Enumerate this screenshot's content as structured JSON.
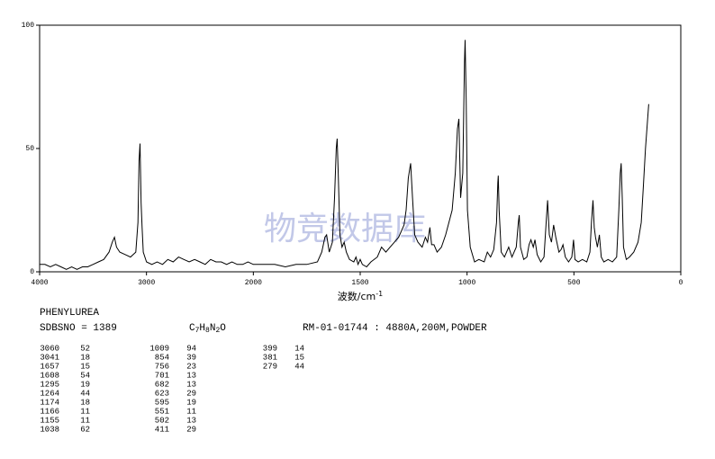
{
  "chart_data": {
    "type": "line",
    "watermark": "物竞数据库",
    "xlabel": {
      "main": "波数/cm",
      "sup": "-1"
    },
    "xlim": [
      4000,
      0
    ],
    "xticks": [
      4000,
      3000,
      2000,
      1500,
      1000,
      500,
      0
    ],
    "ylim": [
      0,
      100
    ],
    "yticks": [
      0,
      50,
      100
    ],
    "color": "#000000",
    "x": [
      4000,
      3950,
      3900,
      3850,
      3800,
      3750,
      3700,
      3650,
      3600,
      3550,
      3500,
      3450,
      3400,
      3350,
      3320,
      3300,
      3280,
      3250,
      3200,
      3150,
      3100,
      3080,
      3070,
      3060,
      3055,
      3050,
      3041,
      3030,
      3000,
      2950,
      2900,
      2850,
      2800,
      2750,
      2700,
      2650,
      2600,
      2550,
      2500,
      2450,
      2400,
      2350,
      2300,
      2250,
      2200,
      2150,
      2100,
      2050,
      2000,
      1950,
      1900,
      1850,
      1800,
      1750,
      1700,
      1680,
      1665,
      1657,
      1645,
      1630,
      1620,
      1612,
      1608,
      1603,
      1595,
      1585,
      1575,
      1565,
      1550,
      1530,
      1520,
      1510,
      1500,
      1490,
      1470,
      1450,
      1420,
      1400,
      1380,
      1360,
      1340,
      1320,
      1300,
      1295,
      1285,
      1275,
      1264,
      1255,
      1245,
      1230,
      1210,
      1195,
      1185,
      1174,
      1166,
      1155,
      1140,
      1120,
      1100,
      1085,
      1070,
      1055,
      1045,
      1038,
      1030,
      1020,
      1012,
      1009,
      1004,
      998,
      985,
      965,
      945,
      920,
      905,
      890,
      875,
      862,
      856,
      854,
      850,
      840,
      825,
      805,
      790,
      770,
      760,
      756,
      750,
      735,
      720,
      710,
      701,
      690,
      682,
      672,
      655,
      640,
      630,
      623,
      615,
      605,
      595,
      585,
      570,
      560,
      551,
      540,
      525,
      510,
      502,
      495,
      480,
      460,
      440,
      425,
      418,
      411,
      405,
      399,
      390,
      381,
      372,
      360,
      340,
      320,
      300,
      290,
      283,
      279,
      274,
      268,
      255,
      240,
      220,
      200,
      185,
      175,
      165,
      155,
      150
    ],
    "values": [
      3,
      3,
      2,
      3,
      2,
      1,
      2,
      1,
      2,
      2,
      3,
      4,
      5,
      8,
      12,
      14,
      10,
      8,
      7,
      6,
      8,
      20,
      45,
      52,
      40,
      28,
      18,
      8,
      4,
      3,
      4,
      3,
      5,
      4,
      6,
      5,
      4,
      5,
      4,
      3,
      5,
      4,
      4,
      3,
      4,
      3,
      3,
      4,
      3,
      3,
      3,
      2,
      3,
      3,
      4,
      8,
      14,
      15,
      8,
      12,
      30,
      50,
      54,
      40,
      15,
      10,
      12,
      8,
      5,
      4,
      6,
      3,
      5,
      3,
      2,
      4,
      6,
      10,
      8,
      10,
      12,
      14,
      18,
      19,
      25,
      38,
      44,
      30,
      15,
      12,
      10,
      14,
      12,
      18,
      11,
      11,
      8,
      10,
      15,
      20,
      25,
      40,
      58,
      62,
      30,
      40,
      85,
      94,
      70,
      25,
      10,
      4,
      5,
      4,
      8,
      6,
      9,
      20,
      36,
      39,
      25,
      8,
      6,
      10,
      6,
      10,
      20,
      23,
      10,
      5,
      6,
      11,
      13,
      10,
      13,
      7,
      4,
      6,
      20,
      29,
      15,
      12,
      19,
      14,
      8,
      9,
      11,
      6,
      4,
      6,
      13,
      5,
      4,
      5,
      4,
      8,
      20,
      29,
      18,
      14,
      10,
      15,
      6,
      4,
      5,
      4,
      6,
      25,
      40,
      44,
      30,
      10,
      5,
      6,
      8,
      12,
      20,
      35,
      50,
      62,
      68
    ]
  },
  "header": {
    "name": "PHENYLUREA",
    "sdbs": "SDBSNO = 1389",
    "formula": [
      "C",
      "7",
      "H",
      "8",
      "N",
      "2",
      "O"
    ],
    "conditions": "RM-01-01744 : 4880A,200M,POWDER"
  },
  "peak_table": [
    [
      [
        3060,
        52
      ],
      [
        3041,
        18
      ],
      [
        1657,
        15
      ],
      [
        1608,
        54
      ],
      [
        1295,
        19
      ],
      [
        1264,
        44
      ],
      [
        1174,
        18
      ],
      [
        1166,
        11
      ],
      [
        1155,
        11
      ],
      [
        1038,
        62
      ]
    ],
    [
      [
        1009,
        94
      ],
      [
        854,
        39
      ],
      [
        756,
        23
      ],
      [
        701,
        13
      ],
      [
        682,
        13
      ],
      [
        623,
        29
      ],
      [
        595,
        19
      ],
      [
        551,
        11
      ],
      [
        502,
        13
      ],
      [
        411,
        29
      ]
    ],
    [
      [
        399,
        14
      ],
      [
        381,
        15
      ],
      [
        279,
        44
      ]
    ]
  ]
}
